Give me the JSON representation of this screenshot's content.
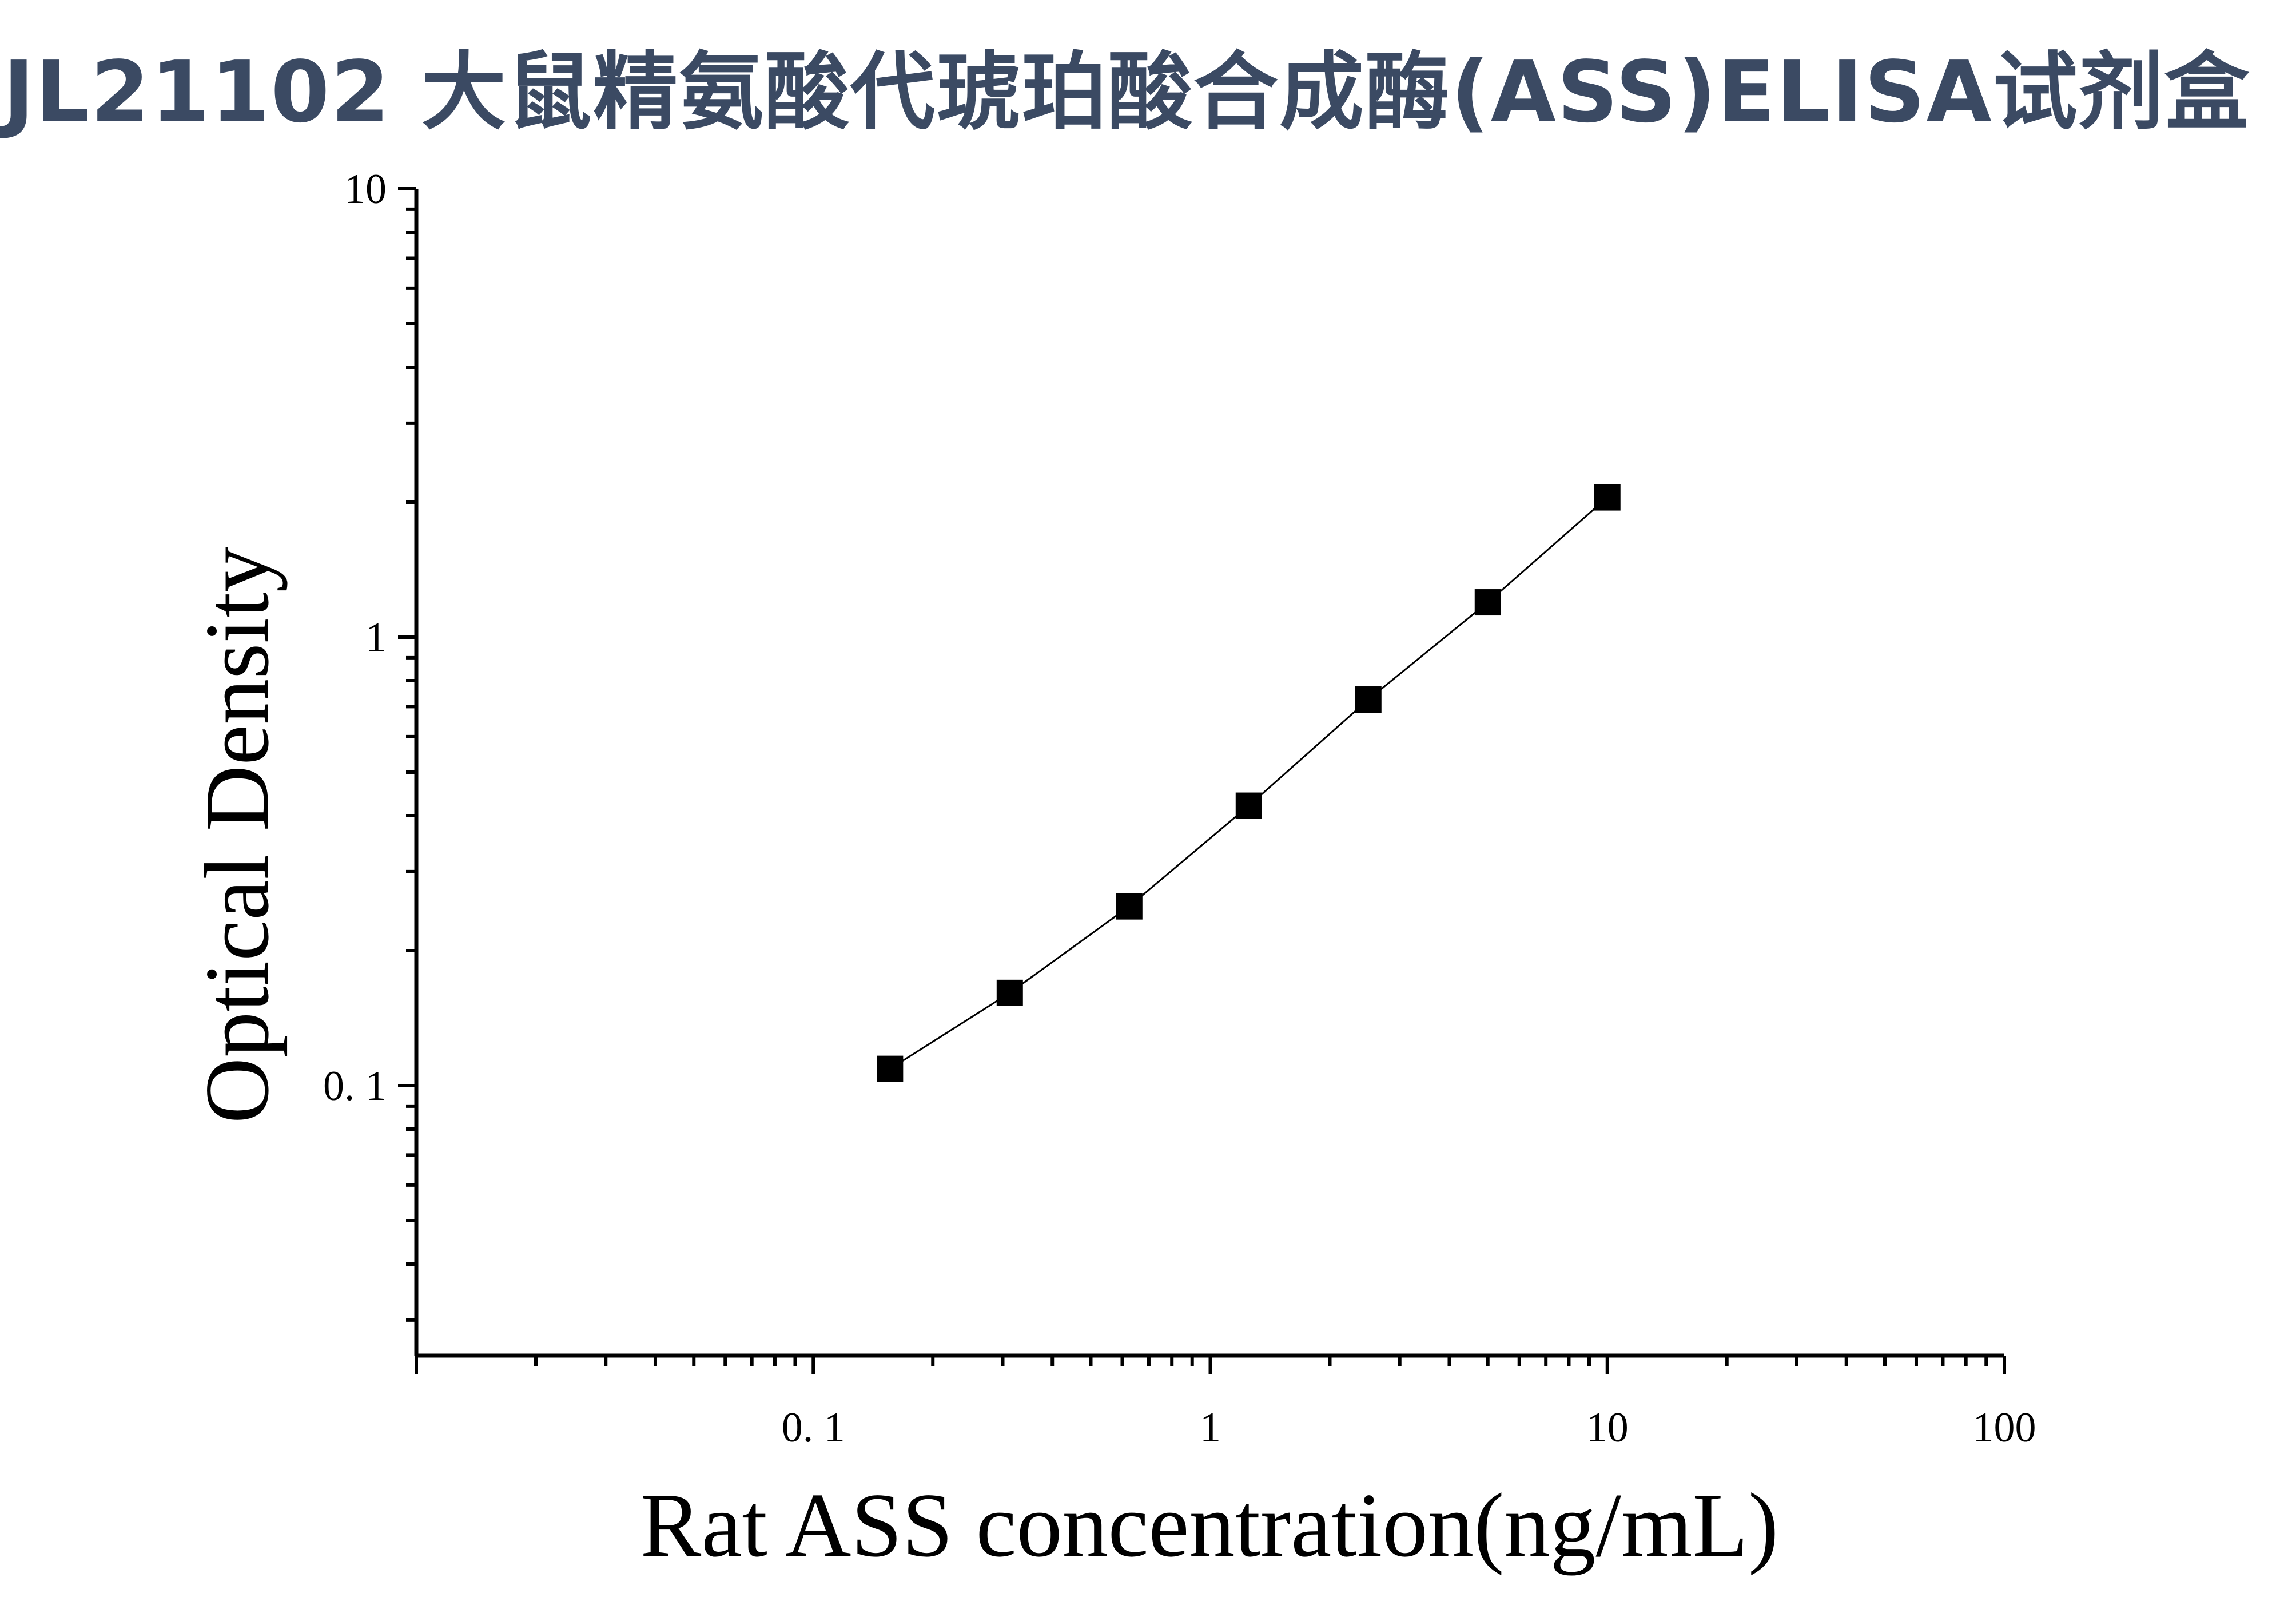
{
  "title": "JL21102 大鼠精氨酸代琥珀酸合成酶(ASS)ELISA试剂盒",
  "chart_data": {
    "type": "scatter",
    "title": "JL21102 大鼠精氨酸代琥珀酸合成酶(ASS)ELISA试剂盒",
    "xlabel": "Rat ASS concentration(ng/mL)",
    "ylabel": "Optical Density",
    "xscale": "log",
    "yscale": "log",
    "xlim": [
      0.01,
      100
    ],
    "ylim": [
      0.025,
      10
    ],
    "x_ticks": [
      {
        "value": 0.1,
        "label": "0. 1"
      },
      {
        "value": 1,
        "label": "1"
      },
      {
        "value": 10,
        "label": "10"
      },
      {
        "value": 100,
        "label": "100"
      }
    ],
    "y_ticks": [
      {
        "value": 0.1,
        "label": "0. 1"
      },
      {
        "value": 1,
        "label": "1"
      },
      {
        "value": 10,
        "label": "10"
      }
    ],
    "grid": false,
    "marker_color": "#000000",
    "line_color": "#000000",
    "series": [
      {
        "x": [
          0.156,
          0.3125,
          0.625,
          1.25,
          2.5,
          5,
          10
        ],
        "y": [
          0.109,
          0.161,
          0.251,
          0.421,
          0.726,
          1.196,
          2.05
        ]
      }
    ]
  }
}
